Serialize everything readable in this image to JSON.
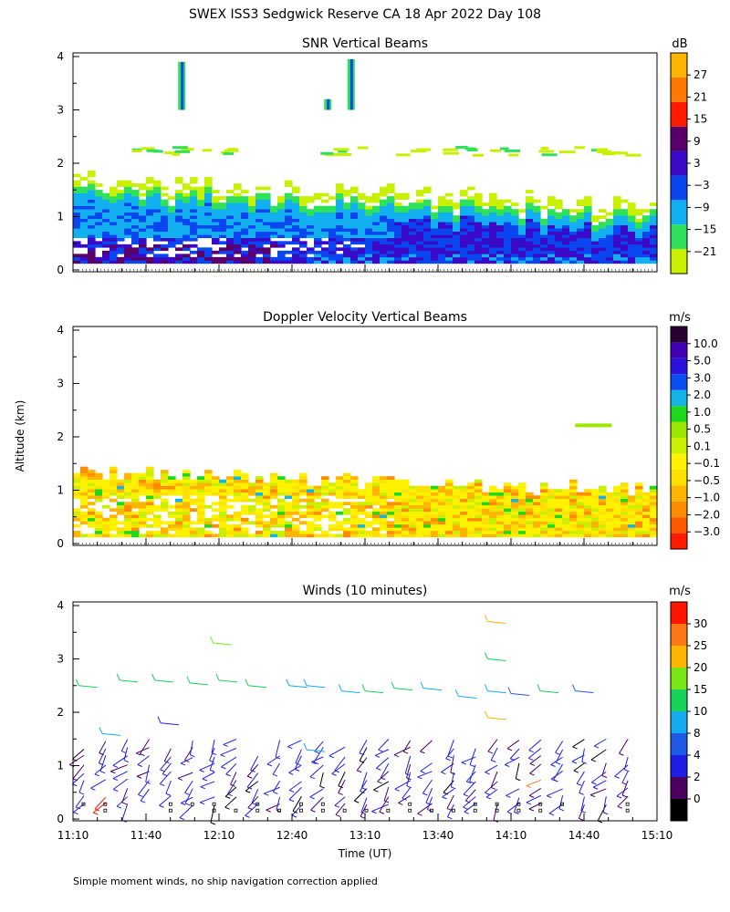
{
  "title": "SWEX ISS3 Sedgwick Reserve CA  18 Apr 2022 Day 108",
  "footnote": "Simple moment winds, no ship navigation correction applied",
  "colors": {
    "snr": [
      "#c8f000",
      "#2ee05a",
      "#12b0f0",
      "#0a46f0",
      "#3a0ac8",
      "#5a006a",
      "#ff1a00",
      "#ff7800",
      "#ffb400"
    ],
    "velocity": [
      "#ff1a00",
      "#ff5a00",
      "#ff8c00",
      "#ffb400",
      "#ffe000",
      "#fff200",
      "#c8f000",
      "#9ae600",
      "#1ed81e",
      "#14b4e6",
      "#0a50f0",
      "#2a14dc",
      "#4200b4",
      "#2a0032"
    ],
    "wind": [
      "#000000",
      "#4b005f",
      "#1e1ee6",
      "#1e5ae6",
      "#14aaf0",
      "#14d25a",
      "#78e614",
      "#ffb400",
      "#ff7814",
      "#ff1400"
    ]
  },
  "chart_data": [
    {
      "type": "heatmap",
      "title": "SNR Vertical Beams",
      "ylabel": "",
      "xlabel": "",
      "x_ticks": [
        "11:10",
        "11:40",
        "12:10",
        "12:40",
        "13:10",
        "13:40",
        "14:10",
        "14:40",
        "15:10"
      ],
      "y_ticks": [
        "0",
        "1",
        "2",
        "3",
        "4"
      ],
      "ylim": [
        0,
        4
      ],
      "colorbar_unit": "dB",
      "colorbar_labels": [
        "27",
        "21",
        "15",
        "9",
        "3",
        "−3",
        "−9",
        "−15",
        "−21"
      ]
    },
    {
      "type": "heatmap",
      "title": "Doppler Velocity Vertical Beams",
      "ylabel": "Altitude (km)",
      "xlabel": "",
      "x_ticks": [
        "11:10",
        "11:40",
        "12:10",
        "12:40",
        "13:10",
        "13:40",
        "14:10",
        "14:40",
        "15:10"
      ],
      "y_ticks": [
        "0",
        "1",
        "2",
        "3",
        "4"
      ],
      "ylim": [
        0,
        4
      ],
      "colorbar_unit": "m/s",
      "colorbar_labels": [
        "10.0",
        "5.0",
        "3.0",
        "2.0",
        "1.0",
        "0.5",
        "0.1",
        "−0.1",
        "−0.5",
        "−1.0",
        "−2.0",
        "−3.0"
      ]
    },
    {
      "type": "scatter",
      "title": "Winds (10 minutes)",
      "ylabel": "",
      "xlabel": "Time (UT)",
      "x_ticks": [
        "11:10",
        "11:40",
        "12:10",
        "12:40",
        "13:10",
        "13:40",
        "14:10",
        "14:40",
        "15:10"
      ],
      "y_ticks": [
        "0",
        "1",
        "2",
        "3",
        "4"
      ],
      "ylim": [
        0,
        4
      ],
      "colorbar_unit": "m/s",
      "colorbar_labels": [
        "30",
        "25",
        "20",
        "15",
        "10",
        "8",
        "4",
        "2",
        "0"
      ]
    }
  ]
}
